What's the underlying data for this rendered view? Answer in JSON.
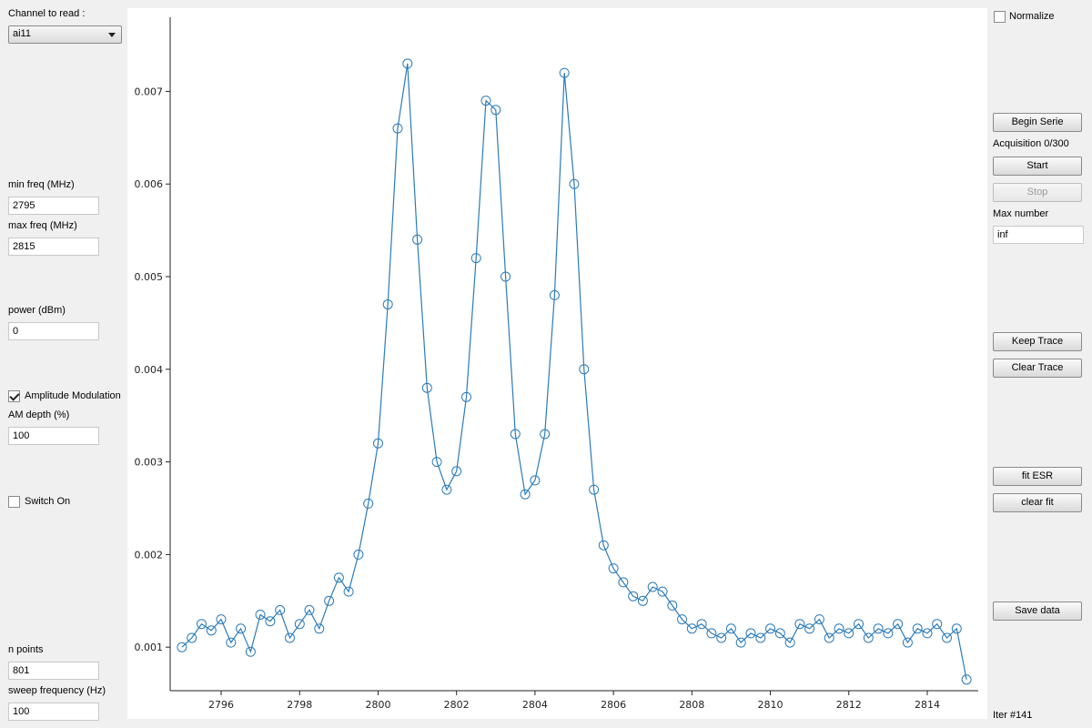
{
  "left_panel": {
    "channel_label": "Channel to read :",
    "channel_value": "ai11",
    "min_freq_label": "min freq (MHz)",
    "min_freq_value": "2795",
    "max_freq_label": "max freq (MHz)",
    "max_freq_value": "2815",
    "power_label": "power (dBm)",
    "power_value": "0",
    "am_label": "Amplitude Modulation",
    "am_checked": true,
    "am_depth_label": "AM depth (%)",
    "am_depth_value": "100",
    "switch_label": "Switch On",
    "switch_checked": false,
    "n_points_label": "n points",
    "n_points_value": "801",
    "sweep_label": "sweep frequency (Hz)",
    "sweep_value": "100"
  },
  "right_panel": {
    "normalize_label": "Normalize",
    "normalize_checked": false,
    "begin_serie": "Begin Serie",
    "acquisition": "Acquisition 0/300",
    "start": "Start",
    "stop": "Stop",
    "max_number_label": "Max number",
    "max_number_value": "inf",
    "keep_trace": "Keep Trace",
    "clear_trace": "Clear Trace",
    "fit_esr": "fit ESR",
    "clear_fit": "clear fit",
    "save_data": "Save data",
    "iter": "Iter #141"
  },
  "colors": {
    "series": "#2b7bb9",
    "window_bg": "#f0f0f0",
    "plot_bg": "#ffffff"
  },
  "chart_data": {
    "type": "scatter",
    "markers": "open circles joined by line",
    "xlim": [
      2794.7,
      2815.3
    ],
    "ylim": [
      0.00053,
      0.0078
    ],
    "xticks": [
      2796,
      2798,
      2800,
      2802,
      2804,
      2806,
      2808,
      2810,
      2812,
      2814
    ],
    "yticks": [
      0.001,
      0.002,
      0.003,
      0.004,
      0.005,
      0.006,
      0.007
    ],
    "ytick_labels": [
      "0.001",
      "0.002",
      "0.003",
      "0.004",
      "0.005",
      "0.006",
      "0.007"
    ],
    "x": [
      2795.0,
      2795.25,
      2795.5,
      2795.75,
      2796.0,
      2796.25,
      2796.5,
      2796.75,
      2797.0,
      2797.25,
      2797.5,
      2797.75,
      2798.0,
      2798.25,
      2798.5,
      2798.75,
      2799.0,
      2799.25,
      2799.5,
      2799.75,
      2800.0,
      2800.25,
      2800.5,
      2800.75,
      2801.0,
      2801.25,
      2801.5,
      2801.75,
      2802.0,
      2802.25,
      2802.5,
      2802.75,
      2803.0,
      2803.25,
      2803.5,
      2803.75,
      2804.0,
      2804.25,
      2804.5,
      2804.75,
      2805.0,
      2805.25,
      2805.5,
      2805.75,
      2806.0,
      2806.25,
      2806.5,
      2806.75,
      2807.0,
      2807.25,
      2807.5,
      2807.75,
      2808.0,
      2808.25,
      2808.5,
      2808.75,
      2809.0,
      2809.25,
      2809.5,
      2809.75,
      2810.0,
      2810.25,
      2810.5,
      2810.75,
      2811.0,
      2811.25,
      2811.5,
      2811.75,
      2812.0,
      2812.25,
      2812.5,
      2812.75,
      2813.0,
      2813.25,
      2813.5,
      2813.75,
      2814.0,
      2814.25,
      2814.5,
      2814.75,
      2815.0
    ],
    "y": [
      0.001,
      0.0011,
      0.00125,
      0.00118,
      0.0013,
      0.00105,
      0.0012,
      0.00095,
      0.00135,
      0.00128,
      0.0014,
      0.0011,
      0.00125,
      0.0014,
      0.0012,
      0.0015,
      0.00175,
      0.0016,
      0.002,
      0.00255,
      0.0032,
      0.0047,
      0.0066,
      0.0073,
      0.0054,
      0.0038,
      0.003,
      0.0027,
      0.0029,
      0.0037,
      0.0052,
      0.0069,
      0.0068,
      0.005,
      0.0033,
      0.00265,
      0.0028,
      0.0033,
      0.0048,
      0.0072,
      0.006,
      0.004,
      0.0027,
      0.0021,
      0.00185,
      0.0017,
      0.00155,
      0.0015,
      0.00165,
      0.0016,
      0.00145,
      0.0013,
      0.0012,
      0.00125,
      0.00115,
      0.0011,
      0.0012,
      0.00105,
      0.00115,
      0.0011,
      0.0012,
      0.00115,
      0.00105,
      0.00125,
      0.0012,
      0.0013,
      0.0011,
      0.0012,
      0.00115,
      0.00125,
      0.0011,
      0.0012,
      0.00115,
      0.00125,
      0.00105,
      0.0012,
      0.00115,
      0.00125,
      0.0011,
      0.0012,
      0.00065
    ]
  }
}
